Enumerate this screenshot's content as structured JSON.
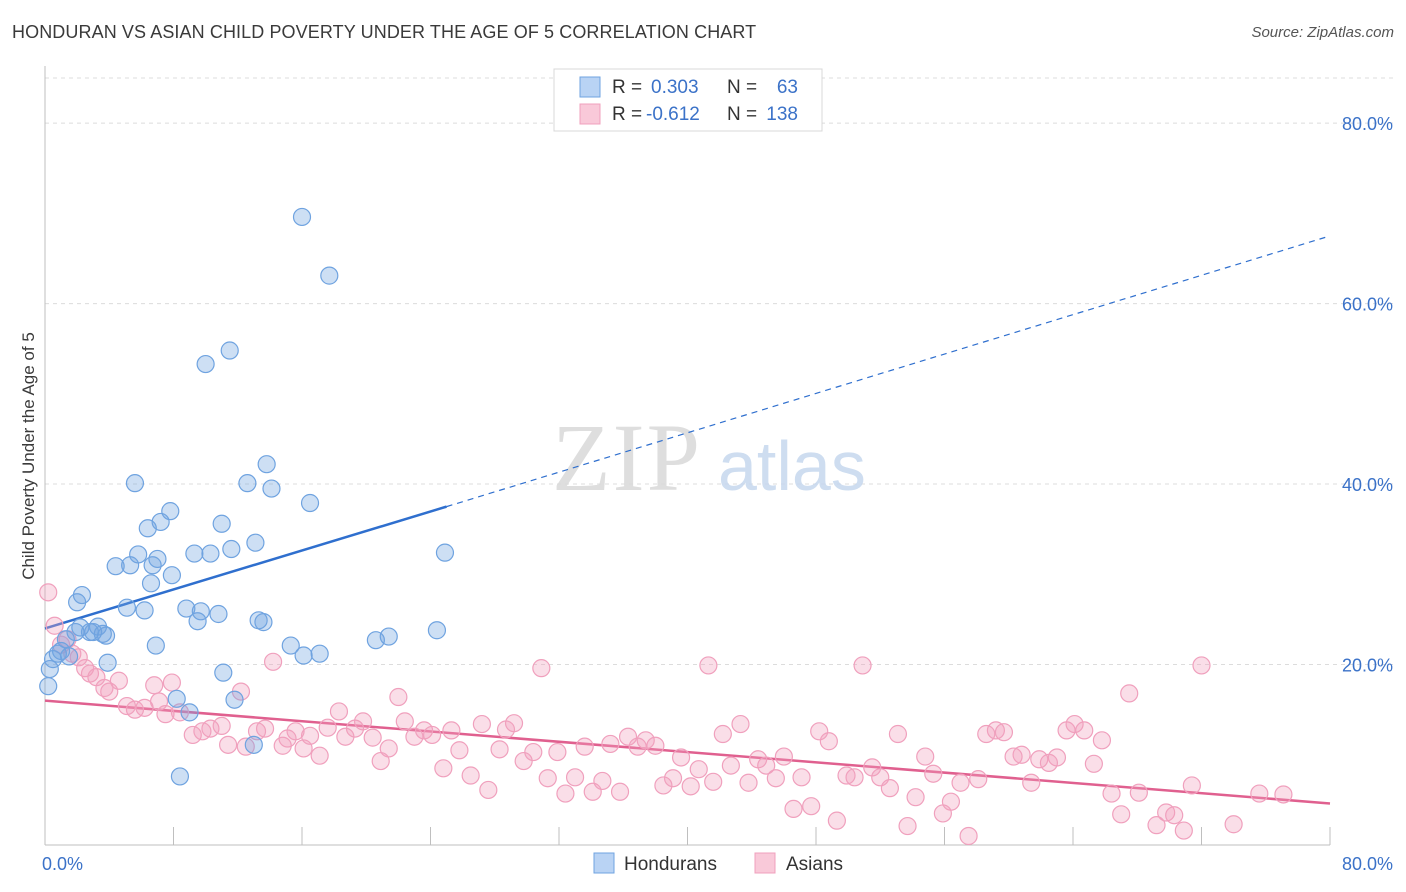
{
  "header": {
    "title": "HONDURAN VS ASIAN CHILD POVERTY UNDER THE AGE OF 5 CORRELATION CHART",
    "source": "Source: ZipAtlas.com"
  },
  "watermark": {
    "zip": "ZIP",
    "atlas": "atlas"
  },
  "legend_box": {
    "rows": [
      {
        "r_label": "R =",
        "r_value": "0.303",
        "n_label": "N =",
        "n_value": "63"
      },
      {
        "r_label": "R =",
        "r_value": "-0.612",
        "n_label": "N =",
        "n_value": "138"
      }
    ]
  },
  "colors": {
    "hondurans": "#6fa3e0",
    "hondurans_line": "#2f6fce",
    "asians": "#f0a0bd",
    "asians_line": "#e0608f",
    "value_text": "#3b72c8",
    "grid": "#dcdcdc"
  },
  "chart_data": {
    "type": "scatter",
    "title": "HONDURAN VS ASIAN CHILD POVERTY UNDER THE AGE OF 5 CORRELATION CHART",
    "xlabel": "",
    "ylabel": "Child Poverty Under the Age of 5",
    "xlim": [
      0,
      80
    ],
    "ylim": [
      0,
      85
    ],
    "x_tick_labels": [
      "0.0%",
      "80.0%"
    ],
    "y_tick_labels": [
      "20.0%",
      "40.0%",
      "60.0%",
      "80.0%"
    ],
    "y_ticks": [
      20,
      40,
      60,
      80
    ],
    "grid": true,
    "legend_position": "bottom-center",
    "series": [
      {
        "name": "Hondurans",
        "r": 0.303,
        "n": 63,
        "trend": {
          "x": [
            0,
            25
          ],
          "y": [
            24.0,
            37.5
          ],
          "dashed_to": [
            80,
            67.5
          ]
        },
        "points": [
          [
            0.2,
            17.6
          ],
          [
            0.3,
            19.5
          ],
          [
            0.5,
            20.6
          ],
          [
            0.8,
            21.2
          ],
          [
            1.0,
            21.5
          ],
          [
            1.3,
            22.8
          ],
          [
            1.5,
            20.9
          ],
          [
            1.9,
            23.6
          ],
          [
            2.2,
            24.1
          ],
          [
            2.3,
            27.7
          ],
          [
            2.8,
            23.6
          ],
          [
            3.0,
            23.6
          ],
          [
            3.3,
            24.2
          ],
          [
            3.6,
            23.4
          ],
          [
            3.8,
            23.2
          ],
          [
            3.9,
            20.2
          ],
          [
            4.4,
            30.9
          ],
          [
            5.1,
            26.3
          ],
          [
            5.3,
            31.0
          ],
          [
            5.6,
            40.1
          ],
          [
            5.8,
            32.2
          ],
          [
            6.2,
            26.0
          ],
          [
            6.4,
            35.1
          ],
          [
            6.6,
            29.0
          ],
          [
            6.7,
            31.0
          ],
          [
            7.0,
            31.7
          ],
          [
            7.2,
            35.8
          ],
          [
            7.8,
            37.0
          ],
          [
            7.9,
            29.9
          ],
          [
            8.2,
            16.2
          ],
          [
            8.4,
            7.6
          ],
          [
            8.8,
            26.2
          ],
          [
            9.0,
            14.7
          ],
          [
            9.3,
            32.3
          ],
          [
            9.5,
            24.8
          ],
          [
            9.7,
            25.9
          ],
          [
            10.0,
            53.3
          ],
          [
            10.3,
            32.3
          ],
          [
            10.8,
            25.6
          ],
          [
            11.0,
            35.6
          ],
          [
            11.5,
            54.8
          ],
          [
            11.6,
            32.8
          ],
          [
            11.8,
            16.1
          ],
          [
            12.6,
            40.1
          ],
          [
            13.0,
            11.1
          ],
          [
            13.1,
            33.5
          ],
          [
            13.3,
            24.9
          ],
          [
            13.6,
            24.7
          ],
          [
            13.8,
            42.2
          ],
          [
            14.1,
            39.5
          ],
          [
            15.3,
            22.1
          ],
          [
            16.1,
            21.0
          ],
          [
            16.5,
            37.9
          ],
          [
            17.1,
            21.2
          ],
          [
            16.0,
            69.6
          ],
          [
            17.7,
            63.1
          ],
          [
            20.6,
            22.7
          ],
          [
            21.4,
            23.1
          ],
          [
            24.4,
            23.8
          ],
          [
            24.9,
            32.4
          ],
          [
            2.0,
            26.9
          ],
          [
            6.9,
            22.1
          ],
          [
            11.1,
            19.1
          ]
        ]
      },
      {
        "name": "Asians",
        "r": -0.612,
        "n": 138,
        "trend": {
          "x": [
            0,
            80
          ],
          "y": [
            16.0,
            4.6
          ]
        },
        "points": [
          [
            0.2,
            28.0
          ],
          [
            0.6,
            24.3
          ],
          [
            1.0,
            22.2
          ],
          [
            1.4,
            22.8
          ],
          [
            1.7,
            21.2
          ],
          [
            2.1,
            20.8
          ],
          [
            2.5,
            19.6
          ],
          [
            2.8,
            19.0
          ],
          [
            3.2,
            18.6
          ],
          [
            3.7,
            17.4
          ],
          [
            4.0,
            17.0
          ],
          [
            4.6,
            18.2
          ],
          [
            5.1,
            15.4
          ],
          [
            5.6,
            15.0
          ],
          [
            6.2,
            15.2
          ],
          [
            6.8,
            17.7
          ],
          [
            7.1,
            15.9
          ],
          [
            7.5,
            14.5
          ],
          [
            7.9,
            18.0
          ],
          [
            8.4,
            14.7
          ],
          [
            9.2,
            12.2
          ],
          [
            9.8,
            12.6
          ],
          [
            10.3,
            12.9
          ],
          [
            11.0,
            13.2
          ],
          [
            11.4,
            11.1
          ],
          [
            12.2,
            17.0
          ],
          [
            12.5,
            10.9
          ],
          [
            13.2,
            12.6
          ],
          [
            13.7,
            12.9
          ],
          [
            14.2,
            20.3
          ],
          [
            14.8,
            11.0
          ],
          [
            15.1,
            11.8
          ],
          [
            15.6,
            12.6
          ],
          [
            16.1,
            10.7
          ],
          [
            16.5,
            12.1
          ],
          [
            17.1,
            9.9
          ],
          [
            17.6,
            13.0
          ],
          [
            18.3,
            14.8
          ],
          [
            18.7,
            12.0
          ],
          [
            19.3,
            12.9
          ],
          [
            19.8,
            13.7
          ],
          [
            20.4,
            11.9
          ],
          [
            20.9,
            9.3
          ],
          [
            21.4,
            10.7
          ],
          [
            22.0,
            16.4
          ],
          [
            22.4,
            13.7
          ],
          [
            23.0,
            12.0
          ],
          [
            23.6,
            12.7
          ],
          [
            24.1,
            12.2
          ],
          [
            24.8,
            8.5
          ],
          [
            25.3,
            12.7
          ],
          [
            25.8,
            10.5
          ],
          [
            26.5,
            7.7
          ],
          [
            27.2,
            13.4
          ],
          [
            27.6,
            6.1
          ],
          [
            28.3,
            10.6
          ],
          [
            28.7,
            12.8
          ],
          [
            29.2,
            13.5
          ],
          [
            29.8,
            9.3
          ],
          [
            30.4,
            10.3
          ],
          [
            30.9,
            19.6
          ],
          [
            31.3,
            7.4
          ],
          [
            31.9,
            10.3
          ],
          [
            32.4,
            5.7
          ],
          [
            33.0,
            7.5
          ],
          [
            33.6,
            10.9
          ],
          [
            34.1,
            5.9
          ],
          [
            34.7,
            7.1
          ],
          [
            35.2,
            11.2
          ],
          [
            35.8,
            5.9
          ],
          [
            36.3,
            12.0
          ],
          [
            36.9,
            10.9
          ],
          [
            37.4,
            11.6
          ],
          [
            38.0,
            11.0
          ],
          [
            38.5,
            6.6
          ],
          [
            39.1,
            7.4
          ],
          [
            39.6,
            9.7
          ],
          [
            40.2,
            6.5
          ],
          [
            40.7,
            8.4
          ],
          [
            41.3,
            19.9
          ],
          [
            41.6,
            7.0
          ],
          [
            42.2,
            12.3
          ],
          [
            42.7,
            8.8
          ],
          [
            43.3,
            13.4
          ],
          [
            43.8,
            6.9
          ],
          [
            44.4,
            9.5
          ],
          [
            44.9,
            8.8
          ],
          [
            45.5,
            7.4
          ],
          [
            46.0,
            9.8
          ],
          [
            46.6,
            4.0
          ],
          [
            47.1,
            7.5
          ],
          [
            47.7,
            4.3
          ],
          [
            48.2,
            12.6
          ],
          [
            48.8,
            11.5
          ],
          [
            49.3,
            2.7
          ],
          [
            49.9,
            7.7
          ],
          [
            50.4,
            7.5
          ],
          [
            50.9,
            19.9
          ],
          [
            51.5,
            8.6
          ],
          [
            52.0,
            7.5
          ],
          [
            52.6,
            6.3
          ],
          [
            53.1,
            12.3
          ],
          [
            53.7,
            2.1
          ],
          [
            54.2,
            5.3
          ],
          [
            54.8,
            9.8
          ],
          [
            55.3,
            7.9
          ],
          [
            55.9,
            3.5
          ],
          [
            56.4,
            4.8
          ],
          [
            57.0,
            6.9
          ],
          [
            57.5,
            1.0
          ],
          [
            58.1,
            7.3
          ],
          [
            58.6,
            12.3
          ],
          [
            59.2,
            12.7
          ],
          [
            59.7,
            12.5
          ],
          [
            60.3,
            9.8
          ],
          [
            60.8,
            10.0
          ],
          [
            61.4,
            6.9
          ],
          [
            61.9,
            9.5
          ],
          [
            62.5,
            9.1
          ],
          [
            63.0,
            9.7
          ],
          [
            63.6,
            12.7
          ],
          [
            64.1,
            13.4
          ],
          [
            64.7,
            12.7
          ],
          [
            65.3,
            9.0
          ],
          [
            65.8,
            11.6
          ],
          [
            66.4,
            5.7
          ],
          [
            67.0,
            3.4
          ],
          [
            67.5,
            16.8
          ],
          [
            68.1,
            5.8
          ],
          [
            69.2,
            2.2
          ],
          [
            69.8,
            3.6
          ],
          [
            70.3,
            3.3
          ],
          [
            70.9,
            1.6
          ],
          [
            71.4,
            6.6
          ],
          [
            72.0,
            19.9
          ],
          [
            74.0,
            2.3
          ],
          [
            75.6,
            5.7
          ],
          [
            77.1,
            5.6
          ]
        ]
      }
    ]
  }
}
